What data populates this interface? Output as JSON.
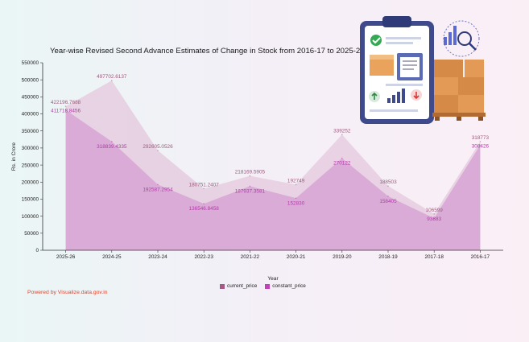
{
  "title": "Year-wise Revised Second Advance Estimates of Change in Stock from 2016-17 to 2025-26",
  "footer": {
    "powered_by": "Powered by Visualize.data.gov.in"
  },
  "colors": {
    "current_price_fill": "#e5ccdf",
    "constant_price_fill": "#d9a6d6",
    "current_price_label": "#9b5b7d",
    "constant_price_label": "#b23aa8",
    "legend_current": "#a35b85",
    "legend_constant": "#c53fb6",
    "powered_by": "#e0452b"
  },
  "chart_data": {
    "type": "area",
    "xlabel": "Year",
    "ylabel": "Rs. in Crore",
    "ylim": [
      0,
      550000
    ],
    "y_ticks": [
      0,
      50000,
      100000,
      150000,
      200000,
      250000,
      300000,
      350000,
      400000,
      450000,
      500000,
      550000
    ],
    "grid": false,
    "legend_position": "bottom",
    "categories": [
      "2025-26",
      "2024-25",
      "2023-24",
      "2022-23",
      "2021-22",
      "2020-21",
      "2019-20",
      "2018-19",
      "2017-18",
      "2016-17"
    ],
    "series": [
      {
        "name": "current_price",
        "values": [
          422196.7688,
          497702.6137,
          292605.0526,
          180751.2407,
          218169.5905,
          192749,
          339252,
          188503,
          106599,
          318773
        ]
      },
      {
        "name": "constant_price",
        "values": [
          411718.8456,
          318839.4335,
          192587.2954,
          136546.8458,
          187937.3581,
          152830,
          270122,
          158405,
          93883,
          308426
        ]
      }
    ],
    "data_labels": {
      "current_price": [
        "422196.7688",
        "497702.6137",
        "292605.0526",
        "180751.2407",
        "218169.5905",
        "192749",
        "339252",
        "188503",
        "106599",
        "318773"
      ],
      "constant_price": [
        "411718.8456",
        "318839.4335",
        "192587.2954",
        "136546.8458",
        "187937.3581",
        "152830",
        "270122",
        "158405",
        "93883",
        "308426"
      ]
    }
  }
}
